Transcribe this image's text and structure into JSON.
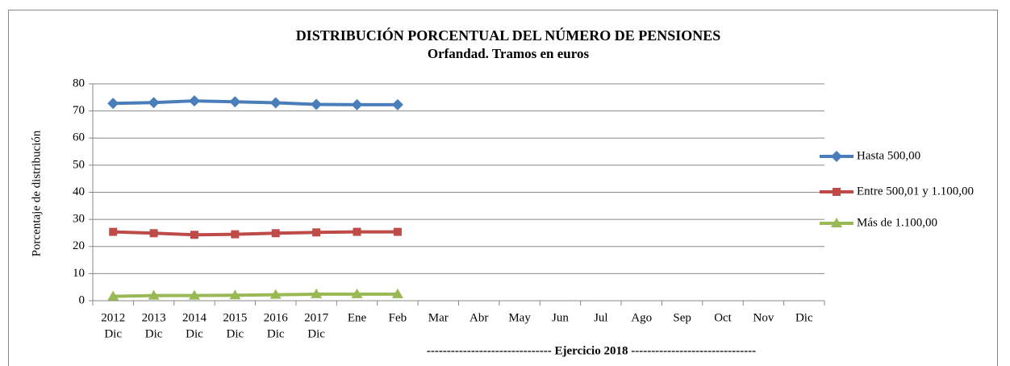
{
  "chart_data": {
    "type": "line",
    "title": "DISTRIBUCIÓN PORCENTUAL DEL NÚMERO DE PENSIONES",
    "subtitle": "Orfandad. Tramos en euros",
    "y_axis_label": "Porcentaje de distribución",
    "annotation": "------------------------------- Ejercicio 2018 -------------------------------",
    "categories": [
      [
        "2012",
        "Dic"
      ],
      [
        "2013",
        "Dic"
      ],
      [
        "2014",
        "Dic"
      ],
      [
        "2015",
        "Dic"
      ],
      [
        "2016",
        "Dic"
      ],
      [
        "2017",
        "Dic"
      ],
      [
        "Ene"
      ],
      [
        "Feb"
      ],
      [
        "Mar"
      ],
      [
        "Abr"
      ],
      [
        "May"
      ],
      [
        "Jun"
      ],
      [
        "Jul"
      ],
      [
        "Ago"
      ],
      [
        "Sep"
      ],
      [
        "Oct"
      ],
      [
        "Nov"
      ],
      [
        "Dic"
      ]
    ],
    "series": [
      {
        "name": "Hasta 500,00",
        "color": "#4a7ebb",
        "marker": "diamond",
        "values": [
          72.8,
          73.1,
          73.7,
          73.4,
          73.0,
          72.4,
          72.3,
          72.3,
          null,
          null,
          null,
          null,
          null,
          null,
          null,
          null,
          null,
          null
        ]
      },
      {
        "name": "Entre 500,01 y 1.100,00",
        "color": "#be4b48",
        "marker": "square",
        "values": [
          25.4,
          24.9,
          24.3,
          24.5,
          24.9,
          25.2,
          25.4,
          25.4,
          null,
          null,
          null,
          null,
          null,
          null,
          null,
          null,
          null,
          null
        ]
      },
      {
        "name": "Más de 1.100,00",
        "color": "#98b954",
        "marker": "triangle",
        "values": [
          1.6,
          1.9,
          1.9,
          2.0,
          2.2,
          2.4,
          2.4,
          2.4,
          null,
          null,
          null,
          null,
          null,
          null,
          null,
          null,
          null,
          null
        ]
      }
    ],
    "ylim": [
      0,
      80
    ],
    "yticks": [
      0,
      10,
      20,
      30,
      40,
      50,
      60,
      70,
      80
    ],
    "grid": true,
    "legend": "right"
  }
}
